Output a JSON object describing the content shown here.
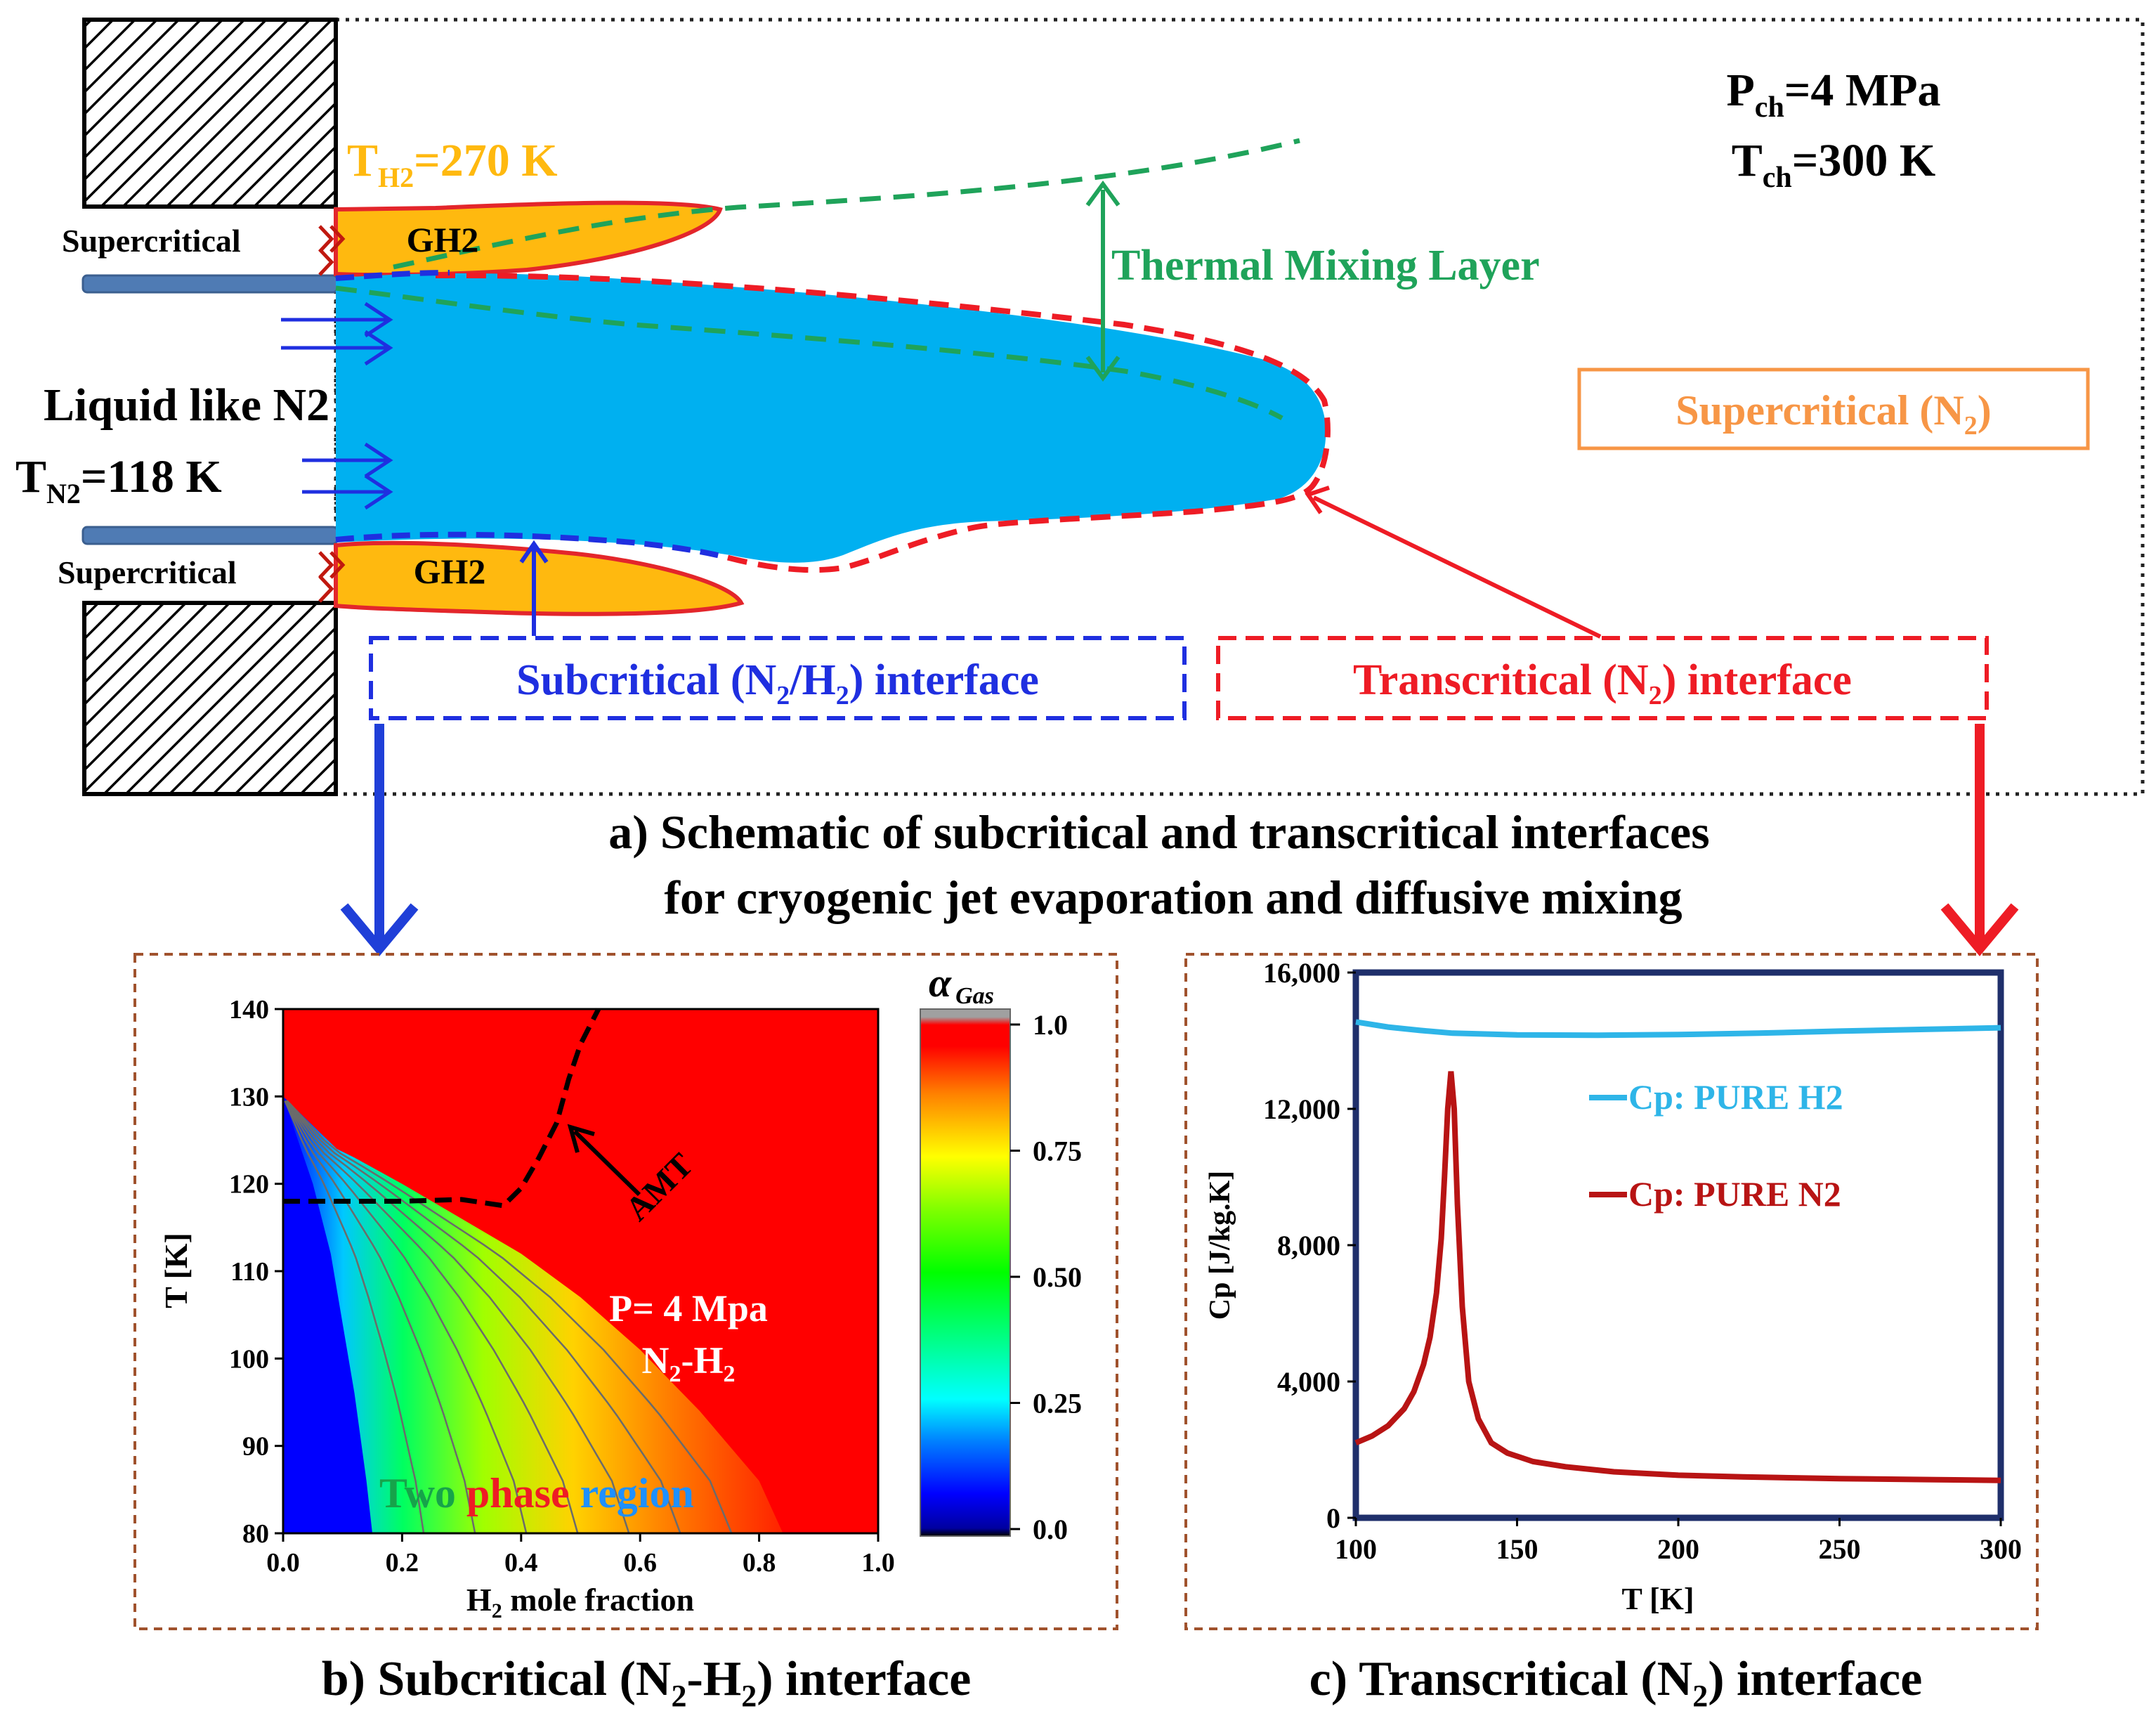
{
  "panel_a": {
    "pressure_label": "P",
    "pressure_sub": "ch",
    "pressure_value": "=4 MPa",
    "temp_label": "T",
    "temp_sub": "ch",
    "temp_value": "=300 K",
    "h2_temp_label": "T",
    "h2_temp_sub": "H2",
    "h2_temp_value": "=270 K",
    "supercritical_top": "Supercritical",
    "supercritical_bottom": "Supercritical",
    "gh2_top": "GH2",
    "gh2_bottom": "GH2",
    "liquid_label": "Liquid like N2",
    "n2_temp_label": "T",
    "n2_temp_sub": "N2",
    "n2_temp_value": "=118 K",
    "mixing_layer": "Thermal Mixing Layer",
    "supercritical_n2_pre": "Supercritical (N",
    "supercritical_n2_sub": "2",
    "supercritical_n2_post": ")",
    "subcritical_box_1": "Subcritical (N",
    "subcritical_box_sub1": "2",
    "subcritical_box_2": "/H",
    "subcritical_box_sub2": "2",
    "subcritical_box_3": ") interface",
    "transcritical_box_1": "Transcritical (N",
    "transcritical_box_sub": "2",
    "transcritical_box_2": ") interface",
    "caption_line1": "a)  Schematic of subcritical and transcritical interfaces",
    "caption_line2": "for cryogenic jet evaporation and diffusive mixing",
    "colors": {
      "gh2_fill": "#FFB90F",
      "gh2_stroke": "#E3262B",
      "n2_fill": "#00B0F0",
      "mixing_green": "#1FA35A",
      "sub_blue": "#1F2FE0",
      "trans_red": "#EE1C25",
      "supercritical_orange": "#F79646"
    }
  },
  "panel_b": {
    "chart_data": {
      "type": "heatmap",
      "title": "",
      "xlabel_pre": "H",
      "xlabel_sub": "2",
      "xlabel_post": " mole fraction",
      "ylabel": "T [K]",
      "xlim": [
        0.0,
        1.0
      ],
      "ylim": [
        80,
        140
      ],
      "x_ticks": [
        "0.0",
        "0.2",
        "0.4",
        "0.6",
        "0.8",
        "1.0"
      ],
      "y_ticks": [
        "80",
        "90",
        "100",
        "110",
        "120",
        "130",
        "140"
      ],
      "colorbar_label": "α",
      "colorbar_label_sub": "Gas",
      "colorbar_ticks": [
        "1.0",
        "0.75",
        "0.50",
        "0.25",
        "0.0"
      ],
      "colorbar_values": [
        1.0,
        0.75,
        0.5,
        0.25,
        0.0
      ],
      "pressure_annotation": "P= 4 Mpa",
      "mixture_pre": "N",
      "mixture_sub1": "2",
      "mixture_mid": "-H",
      "mixture_sub2": "2",
      "amt_label": "AMT",
      "region_word1": "Two",
      "region_word2": "phase",
      "region_word3": "region",
      "region_colors": [
        "#16A34A",
        "#EE1C25",
        "#1E90FF"
      ],
      "two_phase_boundary": {
        "x": [
          0.0,
          0.03,
          0.06,
          0.09,
          0.12,
          0.2,
          0.3,
          0.4,
          0.5,
          0.6,
          0.7,
          0.8,
          0.84
        ],
        "T": [
          130,
          128,
          126,
          124,
          123,
          120,
          116,
          112,
          107,
          101,
          94,
          86,
          80
        ]
      },
      "liquid_boundary": {
        "x": [
          0.0,
          0.02,
          0.05,
          0.08,
          0.1,
          0.12,
          0.14,
          0.15
        ],
        "T": [
          130,
          126,
          120,
          112,
          104,
          96,
          86,
          80
        ]
      },
      "amt_curve": {
        "x": [
          0.0,
          0.1,
          0.2,
          0.3,
          0.37,
          0.4,
          0.43,
          0.46,
          0.48,
          0.5,
          0.53
        ],
        "T": [
          118,
          118,
          118,
          118.2,
          117.5,
          119.5,
          123,
          127,
          132,
          136,
          140
        ]
      }
    }
  },
  "panel_c": {
    "chart_data": {
      "type": "line",
      "xlabel": "T [K]",
      "ylabel": "Cp [J/kg.K]",
      "xlim": [
        100,
        300
      ],
      "ylim": [
        0,
        16000
      ],
      "x_ticks": [
        "100",
        "150",
        "200",
        "250",
        "300"
      ],
      "y_ticks": [
        "0",
        "4,000",
        "8,000",
        "12,000",
        "16,000"
      ],
      "series": [
        {
          "name": "Cp: PURE H2",
          "color": "#2EB5E8",
          "x": [
            100,
            110,
            120,
            130,
            150,
            175,
            200,
            225,
            250,
            275,
            300
          ],
          "y": [
            14550,
            14400,
            14300,
            14220,
            14170,
            14160,
            14180,
            14220,
            14280,
            14330,
            14380
          ]
        },
        {
          "name": "Cp: PURE N2",
          "color": "#B81414",
          "x": [
            100,
            105,
            110,
            115,
            118,
            121,
            123,
            125,
            126.5,
            127.5,
            128.5,
            129.5,
            130.5,
            131.5,
            133,
            135,
            138,
            142,
            147,
            155,
            165,
            180,
            200,
            220,
            250,
            280,
            300
          ],
          "y": [
            2200,
            2400,
            2700,
            3200,
            3700,
            4500,
            5300,
            6600,
            8200,
            10000,
            12000,
            13100,
            12000,
            9200,
            6200,
            4000,
            2900,
            2200,
            1900,
            1650,
            1500,
            1350,
            1250,
            1200,
            1150,
            1120,
            1100
          ]
        }
      ]
    }
  },
  "captions": {
    "b_pre": "b) Subcritical (N",
    "b_sub1": "2",
    "b_mid": "-H",
    "b_sub2": "2",
    "b_post": ") interface",
    "c_pre": "c) Transcritical (N",
    "c_sub": "2",
    "c_post": ") interface"
  }
}
